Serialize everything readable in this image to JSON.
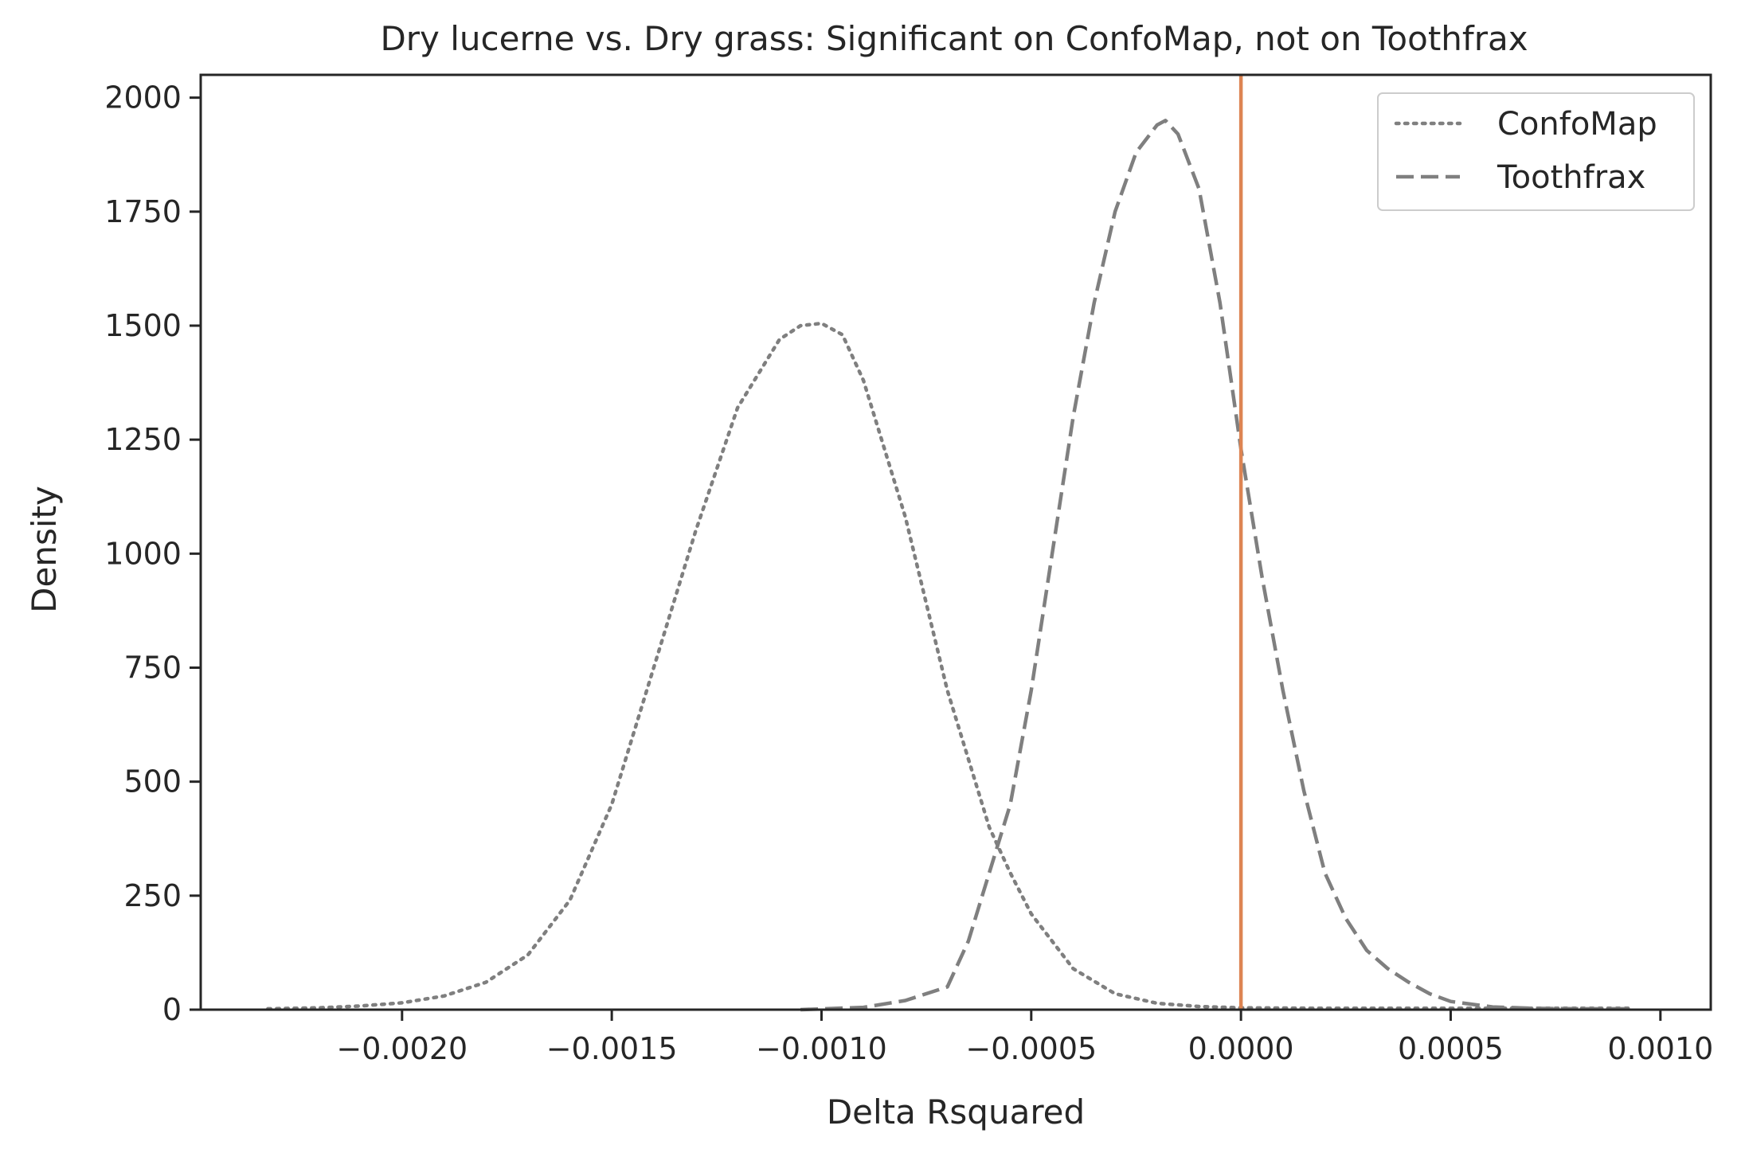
{
  "chart_data": {
    "type": "line",
    "title": "Dry lucerne vs. Dry grass: Significant on ConfoMap, not on Toothfrax",
    "xlabel": "Delta Rsquared",
    "ylabel": "Density",
    "xlim": [
      -0.00248,
      0.00112
    ],
    "ylim": [
      0,
      2050
    ],
    "x_ticks": [
      -0.002,
      -0.0015,
      -0.001,
      -0.0005,
      0.0,
      0.0005,
      0.001
    ],
    "x_tick_labels": [
      "−0.0020",
      "−0.0015",
      "−0.0010",
      "−0.0005",
      "0.0000",
      "0.0005",
      "0.0010"
    ],
    "y_ticks": [
      0,
      250,
      500,
      750,
      1000,
      1250,
      1500,
      1750,
      2000
    ],
    "y_tick_labels": [
      "0",
      "250",
      "500",
      "750",
      "1000",
      "1250",
      "1500",
      "1750",
      "2000"
    ],
    "grid": false,
    "legend": {
      "position": "top-right"
    },
    "reference_line": {
      "x": 0.0,
      "color": "#dd8452"
    },
    "series": [
      {
        "name": "ConfoMap",
        "style": "dotted",
        "color": "#7f7f7f",
        "x": [
          -0.00232,
          -0.0022,
          -0.0021,
          -0.002,
          -0.0019,
          -0.0018,
          -0.0017,
          -0.0016,
          -0.0015,
          -0.0014,
          -0.0013,
          -0.0012,
          -0.0011,
          -0.00105,
          -0.001,
          -0.00095,
          -0.0009,
          -0.0008,
          -0.0007,
          -0.0006,
          -0.00055,
          -0.0005,
          -0.0004,
          -0.0003,
          -0.0002,
          -0.0001,
          0.0,
          0.0002,
          0.0004,
          0.0006,
          0.0008,
          0.00093
        ],
        "y": [
          2,
          4,
          8,
          15,
          30,
          60,
          120,
          240,
          450,
          750,
          1050,
          1320,
          1470,
          1500,
          1505,
          1480,
          1380,
          1080,
          700,
          400,
          300,
          210,
          90,
          35,
          14,
          7,
          4,
          3,
          3,
          3,
          3,
          3
        ]
      },
      {
        "name": "Toothfrax",
        "style": "dashed",
        "color": "#7f7f7f",
        "x": [
          -0.00105,
          -0.0009,
          -0.0008,
          -0.0007,
          -0.00065,
          -0.0006,
          -0.00055,
          -0.0005,
          -0.00045,
          -0.0004,
          -0.00035,
          -0.0003,
          -0.00025,
          -0.0002,
          -0.00018,
          -0.00015,
          -0.0001,
          -5e-05,
          0.0,
          5e-05,
          0.0001,
          0.00015,
          0.0002,
          0.00025,
          0.0003,
          0.00035,
          0.0004,
          0.00045,
          0.0005,
          0.0006,
          0.0007,
          0.0008,
          0.00093
        ],
        "y": [
          0,
          5,
          20,
          50,
          150,
          300,
          450,
          700,
          1000,
          1300,
          1550,
          1750,
          1880,
          1940,
          1950,
          1920,
          1800,
          1550,
          1230,
          950,
          700,
          480,
          300,
          200,
          130,
          90,
          60,
          35,
          18,
          6,
          3,
          2,
          2
        ]
      }
    ]
  }
}
